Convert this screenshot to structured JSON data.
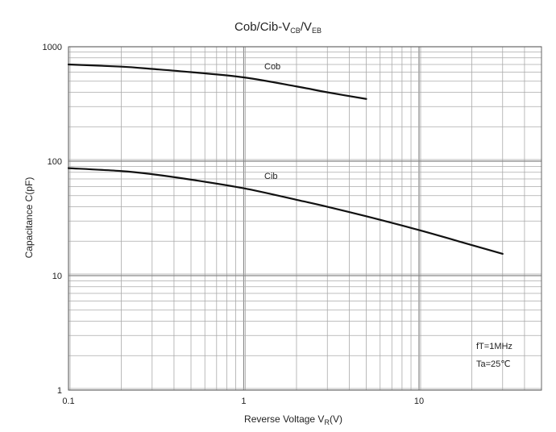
{
  "chart_data": {
    "type": "line",
    "title": {
      "main": "Cob/Cib-V",
      "sub1": "CB",
      "sep": "/V",
      "sub2": "EB"
    },
    "xlabel": {
      "main": "Reverse Voltage  V",
      "sub": "R",
      "tail": "(V)"
    },
    "ylabel": "Capacitance  C(pF)",
    "xscale": "log",
    "yscale": "log",
    "xlim": [
      0.1,
      50
    ],
    "ylim": [
      1,
      1000
    ],
    "x_ticks": [
      "0.1",
      "1",
      "10"
    ],
    "y_ticks": [
      "1",
      "10",
      "100",
      "1000"
    ],
    "grid": true,
    "series": [
      {
        "name": "Cob",
        "x": [
          0.1,
          0.2,
          0.3,
          0.5,
          1,
          2,
          3,
          5
        ],
        "y": [
          700,
          670,
          640,
          600,
          540,
          450,
          400,
          350
        ]
      },
      {
        "name": "Cib",
        "x": [
          0.1,
          0.2,
          0.3,
          0.5,
          1,
          2,
          3,
          5,
          10,
          20,
          30
        ],
        "y": [
          87,
          82,
          77,
          69,
          58,
          46,
          40,
          33,
          25,
          18.5,
          15.5
        ]
      }
    ],
    "annotations": [
      "fT=1MHz",
      "Ta=25℃"
    ],
    "line_color": "#111111",
    "grid_color": "#aaaaaa"
  }
}
